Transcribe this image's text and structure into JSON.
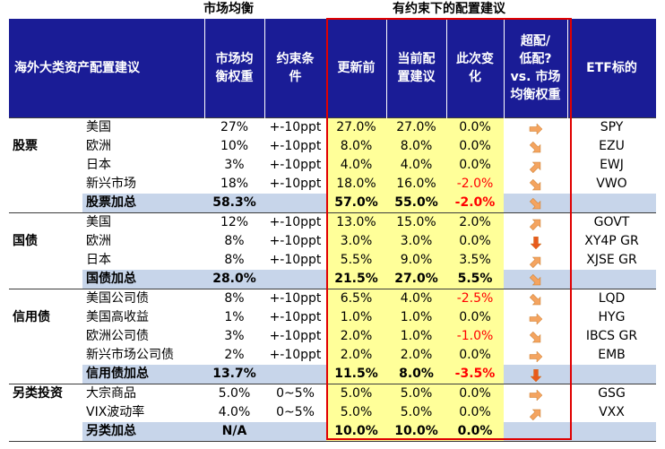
{
  "top_labels": {
    "market": "市场均衡",
    "constrained": "有约束下的配置建议"
  },
  "headers": {
    "region": "海外大类资产配置建议",
    "market_weight": [
      "市场均",
      "衡权重"
    ],
    "constraint": [
      "约束条",
      "件"
    ],
    "before": "更新前",
    "current": [
      "当前配",
      "置建议"
    ],
    "change": [
      "此次变",
      "化"
    ],
    "over_under": [
      "超配/",
      "低配?",
      "vs. 市场",
      "均衡权重"
    ],
    "etf": "ETF标的"
  },
  "colors": {
    "header_bg": "#1a1c96",
    "highlight": "#ffff99",
    "total_bg": "#c7d5ea",
    "negative": "#ff0000",
    "arrow": "#f4a460",
    "arrow_down": "#e85a1c",
    "frame": "#e00000"
  },
  "rows": [
    {
      "type": "item",
      "cat": "",
      "sub": "美国",
      "mw": "27%",
      "con": "+-10ppt",
      "before": "27.0%",
      "current": "27.0%",
      "change": "0.0%",
      "neg": false,
      "arrow": "right",
      "etf": "SPY"
    },
    {
      "type": "item",
      "cat": "股票",
      "sub": "欧洲",
      "mw": "10%",
      "con": "+-10ppt",
      "before": "8.0%",
      "current": "8.0%",
      "change": "0.0%",
      "neg": false,
      "arrow": "down-right",
      "etf": "EZU"
    },
    {
      "type": "item",
      "cat": "",
      "sub": "日本",
      "mw": "3%",
      "con": "+-10ppt",
      "before": "4.0%",
      "current": "4.0%",
      "change": "0.0%",
      "neg": false,
      "arrow": "up-right",
      "etf": "EWJ"
    },
    {
      "type": "item",
      "cat": "",
      "sub": "新兴市场",
      "mw": "18%",
      "con": "+-10ppt",
      "before": "18.0%",
      "current": "16.0%",
      "change": "-2.0%",
      "neg": true,
      "arrow": "down-right",
      "etf": "VWO"
    },
    {
      "type": "total",
      "cat": "",
      "sub": "股票加总",
      "mw": "58.3%",
      "con": "",
      "before": "57.0%",
      "current": "55.0%",
      "change": "-2.0%",
      "neg": true,
      "arrow": "down-right",
      "etf": ""
    },
    {
      "type": "item",
      "cat": "",
      "sub": "美国",
      "mw": "12%",
      "con": "+-10ppt",
      "before": "13.0%",
      "current": "15.0%",
      "change": "2.0%",
      "neg": false,
      "arrow": "up-right",
      "etf": "GOVT"
    },
    {
      "type": "item",
      "cat": "国债",
      "sub": "欧洲",
      "mw": "8%",
      "con": "+-10ppt",
      "before": "3.0%",
      "current": "3.0%",
      "change": "0.0%",
      "neg": false,
      "arrow": "down",
      "etf": "XY4P GR"
    },
    {
      "type": "item",
      "cat": "",
      "sub": "日本",
      "mw": "8%",
      "con": "+-10ppt",
      "before": "5.5%",
      "current": "9.0%",
      "change": "3.5%",
      "neg": false,
      "arrow": "up-right",
      "etf": "XJSE GR"
    },
    {
      "type": "total",
      "cat": "",
      "sub": "国债加总",
      "mw": "28.0%",
      "con": "",
      "before": "21.5%",
      "current": "27.0%",
      "change": "5.5%",
      "neg": false,
      "arrow": "down-right",
      "etf": ""
    },
    {
      "type": "item",
      "cat": "",
      "sub": "美国公司债",
      "mw": "8%",
      "con": "+-10ppt",
      "before": "6.5%",
      "current": "4.0%",
      "change": "-2.5%",
      "neg": true,
      "arrow": "down-right",
      "etf": "LQD"
    },
    {
      "type": "item",
      "cat": "信用债",
      "sub": "美国高收益",
      "mw": "1%",
      "con": "+-10ppt",
      "before": "1.0%",
      "current": "1.0%",
      "change": "0.0%",
      "neg": false,
      "arrow": "right",
      "etf": "HYG"
    },
    {
      "type": "item",
      "cat": "",
      "sub": "欧洲公司债",
      "mw": "3%",
      "con": "+-10ppt",
      "before": "2.0%",
      "current": "1.0%",
      "change": "-1.0%",
      "neg": true,
      "arrow": "down-right",
      "etf": "IBCS GR"
    },
    {
      "type": "item",
      "cat": "",
      "sub": "新兴市场公司债",
      "mw": "2%",
      "con": "+-10ppt",
      "before": "2.0%",
      "current": "2.0%",
      "change": "0.0%",
      "neg": false,
      "arrow": "right",
      "etf": "EMB"
    },
    {
      "type": "total",
      "cat": "",
      "sub": "信用债加总",
      "mw": "13.7%",
      "con": "",
      "before": "11.5%",
      "current": "8.0%",
      "change": "-3.5%",
      "neg": true,
      "arrow": "down",
      "etf": ""
    },
    {
      "type": "item",
      "cat": "另类投资",
      "sub": "大宗商品",
      "mw": "5.0%",
      "con": "0~5%",
      "before": "5.0%",
      "current": "5.0%",
      "change": "0.0%",
      "neg": false,
      "arrow": "right",
      "etf": "GSG"
    },
    {
      "type": "item",
      "cat": "",
      "sub": "VIX波动率",
      "mw": "4.0%",
      "con": "0~5%",
      "before": "5.0%",
      "current": "5.0%",
      "change": "0.0%",
      "neg": false,
      "arrow": "up-right",
      "etf": "VXX"
    },
    {
      "type": "total",
      "cat": "",
      "sub": "另类加总",
      "mw": "N/A",
      "con": "",
      "before": "10.0%",
      "current": "10.0%",
      "change": "0.0%",
      "neg": false,
      "arrow": "",
      "etf": ""
    }
  ]
}
